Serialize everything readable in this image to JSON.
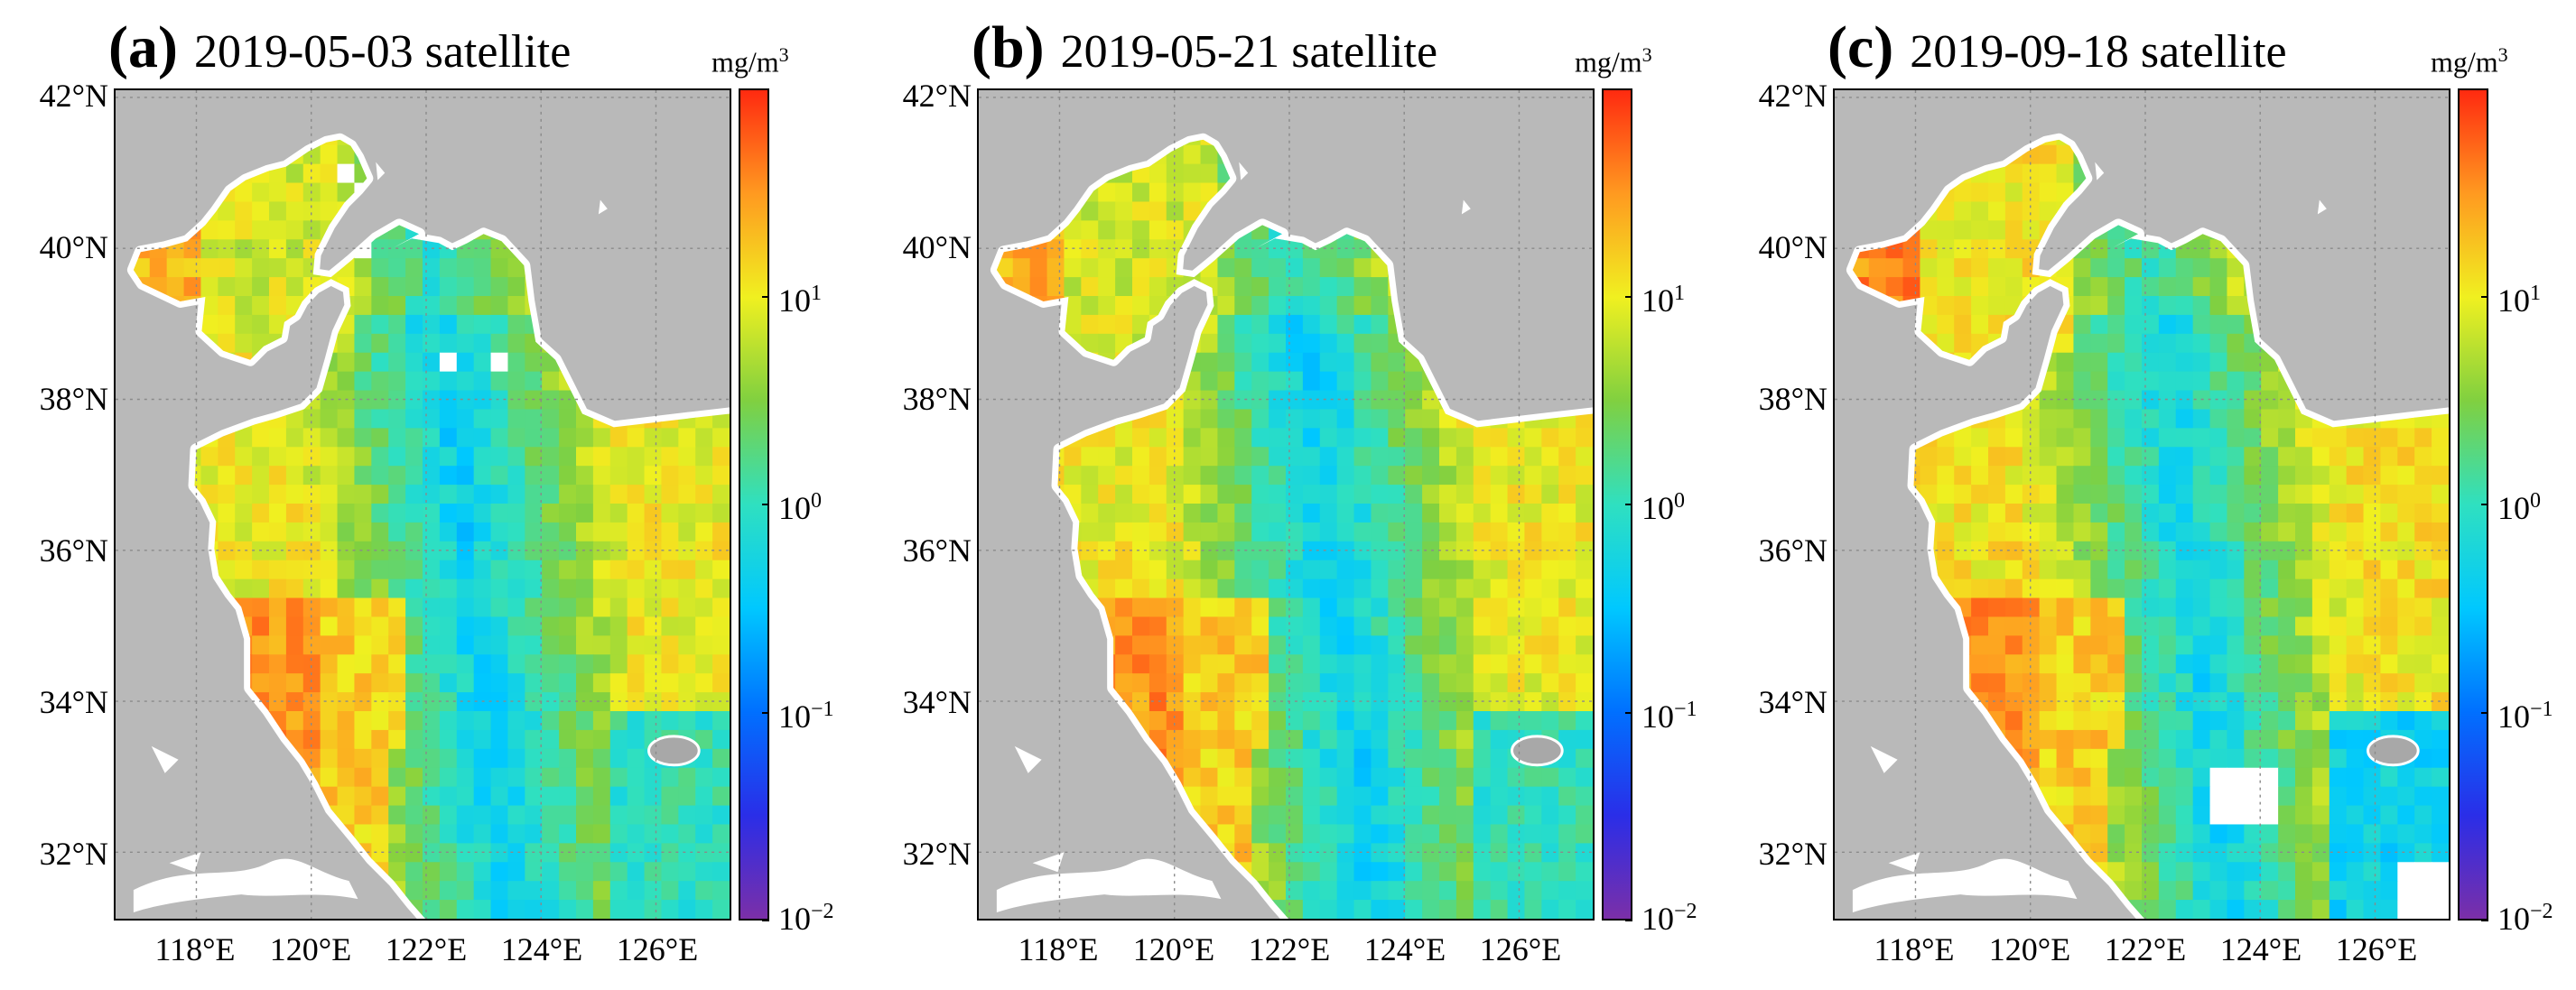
{
  "panels": [
    {
      "letter": "(a)",
      "date": "2019-05-03 satellite",
      "variant": "a"
    },
    {
      "letter": "(b)",
      "date": "2019-05-21 satellite",
      "variant": "b"
    },
    {
      "letter": "(c)",
      "date": "2019-09-18 satellite",
      "variant": "c"
    }
  ],
  "axes": {
    "lat_ticks": [
      "42°N",
      "40°N",
      "38°N",
      "36°N",
      "34°N",
      "32°N"
    ],
    "lon_ticks": [
      "118°E",
      "120°E",
      "122°E",
      "124°E",
      "126°E"
    ],
    "lat_range": [
      31,
      42
    ],
    "lon_range": [
      117,
      127
    ]
  },
  "colorbar": {
    "unit_base": "mg/m",
    "unit_exp": "3",
    "ticks": [
      {
        "base": "10",
        "exp": "1"
      },
      {
        "base": "10",
        "exp": "0"
      },
      {
        "base": "10",
        "exp": "−1"
      },
      {
        "base": "10",
        "exp": "−2"
      }
    ],
    "colors": [
      "#7b2fa8",
      "#2a2ee8",
      "#0070ff",
      "#00c8ff",
      "#2fe0c0",
      "#80d040",
      "#f0f020",
      "#ff9a20",
      "#ff2a10"
    ]
  },
  "colors": {
    "land": "#b9b9b9",
    "nodata": "#ffffff",
    "grid": "#8a8a8a"
  }
}
